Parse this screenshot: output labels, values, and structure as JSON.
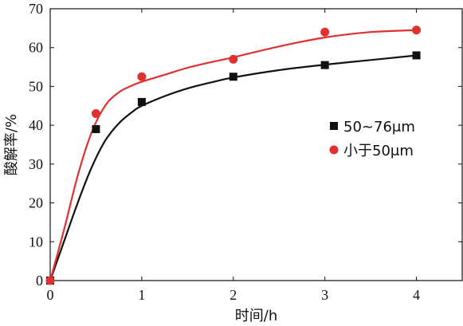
{
  "chart_data": {
    "type": "scatter",
    "xlabel": "时间/h",
    "ylabel": "酸解率/%",
    "xlim": [
      0,
      4.5
    ],
    "ylim": [
      0,
      70
    ],
    "xticks": [
      0,
      1,
      2,
      3,
      4
    ],
    "yticks": [
      0,
      10,
      20,
      30,
      40,
      50,
      60,
      70
    ],
    "grid": false,
    "legend_position": "right",
    "series": [
      {
        "name": "50~76μm",
        "marker": "square",
        "color": "#111111",
        "x": [
          0,
          0.5,
          1,
          2,
          3,
          4
        ],
        "y": [
          0,
          39,
          46,
          52.5,
          55.5,
          58
        ],
        "fit_x": [
          0,
          0.15,
          0.3,
          0.45,
          0.6,
          0.75,
          0.9,
          1.0,
          1.25,
          1.5,
          1.75,
          2.0,
          2.5,
          3.0,
          3.5,
          4.0
        ],
        "fit_y": [
          0,
          10,
          20,
          29,
          36,
          40.5,
          43.5,
          45,
          47.5,
          49.5,
          51,
          52.3,
          54.2,
          55.6,
          56.8,
          58
        ]
      },
      {
        "name": "小于50μm",
        "marker": "circle",
        "color": "#e03030",
        "x": [
          0,
          0.5,
          1,
          2,
          3,
          4
        ],
        "y": [
          0,
          43,
          52.5,
          57,
          64,
          64.5
        ],
        "fit_x": [
          0,
          0.15,
          0.3,
          0.45,
          0.6,
          0.75,
          0.9,
          1.0,
          1.25,
          1.5,
          1.75,
          2.0,
          2.5,
          3.0,
          3.5,
          4.0
        ],
        "fit_y": [
          0,
          13,
          27,
          38,
          45,
          48.5,
          50.3,
          51.2,
          53,
          54.8,
          56.2,
          57.5,
          60.3,
          62.6,
          64,
          64.5
        ]
      }
    ]
  }
}
